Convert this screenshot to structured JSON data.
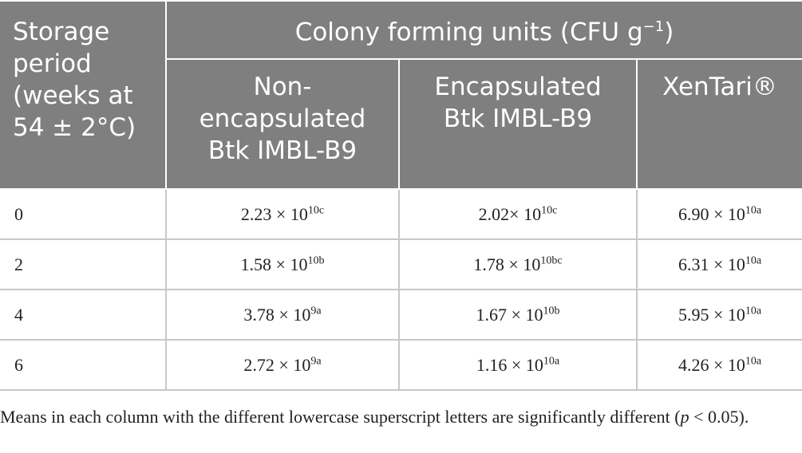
{
  "table": {
    "header": {
      "row_header": "Storage period (weeks at 54 ± 2°C)",
      "group": {
        "text": "Colony forming units (CFU g",
        "sup": "−1",
        "tail": ")"
      },
      "columns": [
        "Non-encapsulated Btk IMBL-B9",
        "Encapsulated Btk IMBL-B9",
        "XenTari®"
      ]
    },
    "rows": [
      {
        "period": "0",
        "cells": [
          {
            "base": "2.23 × 10",
            "sup": "10c"
          },
          {
            "base": "2.02× 10",
            "sup": "10c"
          },
          {
            "base": "6.90 × 10",
            "sup": "10a"
          }
        ]
      },
      {
        "period": "2",
        "cells": [
          {
            "base": "1.58 × 10",
            "sup": "10b"
          },
          {
            "base": "1.78 × 10",
            "sup": "10bc"
          },
          {
            "base": "6.31 × 10",
            "sup": "10a"
          }
        ]
      },
      {
        "period": "4",
        "cells": [
          {
            "base": "3.78 × 10",
            "sup": "9a"
          },
          {
            "base": "1.67 × 10",
            "sup": "10b"
          },
          {
            "base": "5.95 × 10",
            "sup": "10a"
          }
        ]
      },
      {
        "period": "6",
        "cells": [
          {
            "base": "2.72 × 10",
            "sup": "9a"
          },
          {
            "base": "1.16 × 10",
            "sup": "10a"
          },
          {
            "base": "4.26 × 10",
            "sup": "10a"
          }
        ]
      }
    ],
    "footnote": {
      "text": "Means in each column with the different lowercase superscript letters are significantly different (",
      "italic": "p",
      "tail": " < 0.05)."
    }
  }
}
